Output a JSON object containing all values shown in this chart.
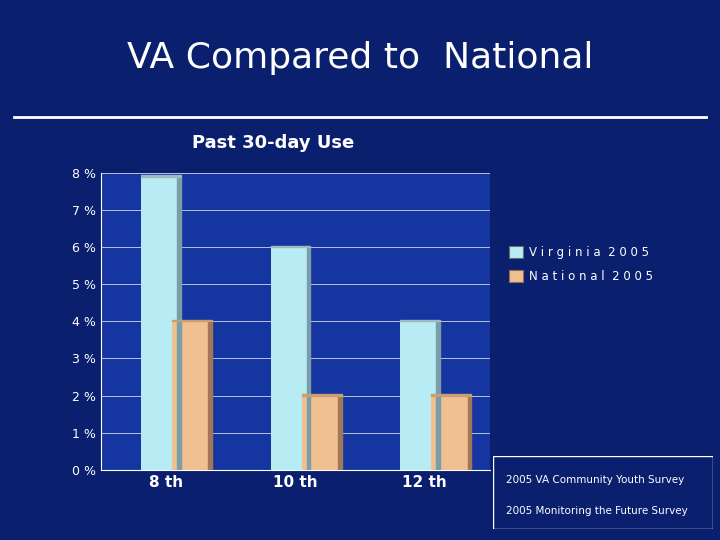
{
  "title": "VA Compared to  National",
  "subtitle": "Past 30-day Use",
  "categories": [
    "8 th",
    "10 th",
    "12 th"
  ],
  "virginia_2005": [
    7.9,
    6.0,
    4.0
  ],
  "national_2005": [
    4.0,
    2.0,
    2.0
  ],
  "virginia_color": "#b8ecf4",
  "virginia_shadow": "#7a9da8",
  "national_color": "#f0c090",
  "national_shadow": "#a07858",
  "bar_top_color": "#a0b8c0",
  "ylim": [
    0,
    8
  ],
  "yticks": [
    0,
    1,
    2,
    3,
    4,
    5,
    6,
    7,
    8
  ],
  "ytick_labels": [
    "0 %",
    "1 %",
    "2 %",
    "3 %",
    "4 %",
    "5 %",
    "6 %",
    "7 %",
    "8 %"
  ],
  "background_color": "#0a1f6e",
  "plot_bg_color": "#1535a0",
  "title_color": "#ffffff",
  "subtitle_color": "#ffffff",
  "tick_color": "#ffffff",
  "grid_color": "#ffffff",
  "legend_label_va": "V i r g i n i a  2 0 0 5",
  "legend_label_na": "N a t i o n a l  2 0 0 5",
  "footnote1": "2005 VA Community Youth Survey",
  "footnote2": "2005 Monitoring the Future Survey",
  "footnote_color": "#ffffff",
  "footnote_bg": "#0a1f6e",
  "footnote_border": "#ffffff"
}
